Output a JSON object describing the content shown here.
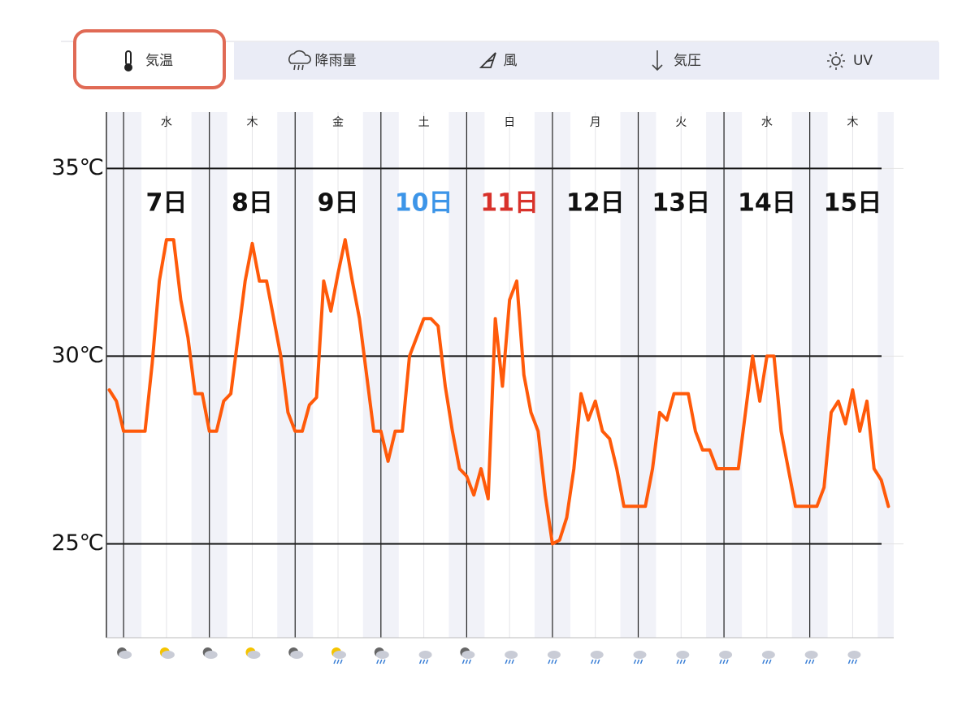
{
  "tabs": [
    {
      "label": "気温",
      "selected": true
    },
    {
      "label": "降雨量",
      "selected": false
    },
    {
      "label": "風",
      "selected": false
    },
    {
      "label": "気圧",
      "selected": false
    },
    {
      "label": "UV",
      "selected": false
    }
  ],
  "chart_data": {
    "type": "line",
    "color": "#ff5a0a",
    "ylim": [
      22.5,
      36.5
    ],
    "yticks": [
      {
        "value": 35,
        "label": "35℃"
      },
      {
        "value": 30,
        "label": "30℃"
      },
      {
        "value": 25,
        "label": "25℃"
      }
    ],
    "xlim": [
      -4.8,
      215.5
    ],
    "days": [
      {
        "weekday": "水",
        "date": "7日",
        "color": "#111111"
      },
      {
        "weekday": "木",
        "date": "8日",
        "color": "#111111"
      },
      {
        "weekday": "金",
        "date": "9日",
        "color": "#111111"
      },
      {
        "weekday": "土",
        "date": "10日",
        "color": "#3d95e8"
      },
      {
        "weekday": "日",
        "date": "11日",
        "color": "#d8322b"
      },
      {
        "weekday": "月",
        "date": "12日",
        "color": "#111111"
      },
      {
        "weekday": "火",
        "date": "13日",
        "color": "#111111"
      },
      {
        "weekday": "水",
        "date": "14日",
        "color": "#111111"
      },
      {
        "weekday": "木",
        "date": "15日",
        "color": "#111111"
      }
    ],
    "x": [
      -4,
      -2,
      0,
      2,
      4,
      6,
      8,
      10,
      12,
      14,
      16,
      18,
      20,
      22,
      24,
      26,
      28,
      30,
      32,
      34,
      36,
      38,
      40,
      42,
      44,
      46,
      48,
      50,
      52,
      54,
      56,
      58,
      60,
      62,
      64,
      66,
      68,
      70,
      72,
      74,
      76,
      78,
      80,
      82,
      84,
      86,
      88,
      90,
      92,
      94,
      96,
      98,
      100,
      102,
      104,
      106,
      108,
      110,
      112,
      114,
      116,
      118,
      120,
      122,
      124,
      126,
      128,
      130,
      132,
      134,
      136,
      138,
      140,
      142,
      144,
      146,
      148,
      150,
      152,
      154,
      156,
      158,
      160,
      162,
      164,
      166,
      168,
      170,
      172,
      174,
      176,
      178,
      180,
      182,
      184,
      186,
      188,
      190,
      192,
      194,
      196,
      198,
      200,
      202,
      204,
      206,
      208,
      210,
      212,
      214
    ],
    "values": [
      29.1,
      28.8,
      28,
      28,
      28,
      28,
      29.8,
      32,
      33.1,
      33.1,
      31.5,
      30.5,
      29,
      29,
      28,
      28,
      28.8,
      29,
      30.5,
      32,
      33,
      32,
      32,
      31,
      30,
      28.5,
      28,
      28,
      28.7,
      28.9,
      32,
      31.2,
      32.2,
      33.1,
      32,
      31,
      29.5,
      28,
      28,
      27.2,
      28,
      28,
      30,
      30.5,
      31,
      31,
      30.8,
      29.2,
      28,
      27,
      26.8,
      26.3,
      27,
      26.2,
      31,
      29.2,
      31.5,
      32,
      29.5,
      28.5,
      28,
      26.3,
      25,
      25.1,
      25.7,
      27,
      29,
      28.3,
      28.8,
      28,
      27.8,
      27,
      26,
      26,
      26,
      26,
      27,
      28.5,
      28.3,
      29,
      29,
      29,
      28,
      27.5,
      27.5,
      27,
      27,
      27,
      27,
      28.5,
      30,
      28.8,
      30,
      30,
      28,
      27,
      26,
      26,
      26,
      26,
      26.5,
      28.5,
      28.8,
      28.2,
      29.1,
      28,
      28.8,
      27,
      26.7,
      26
    ]
  }
}
